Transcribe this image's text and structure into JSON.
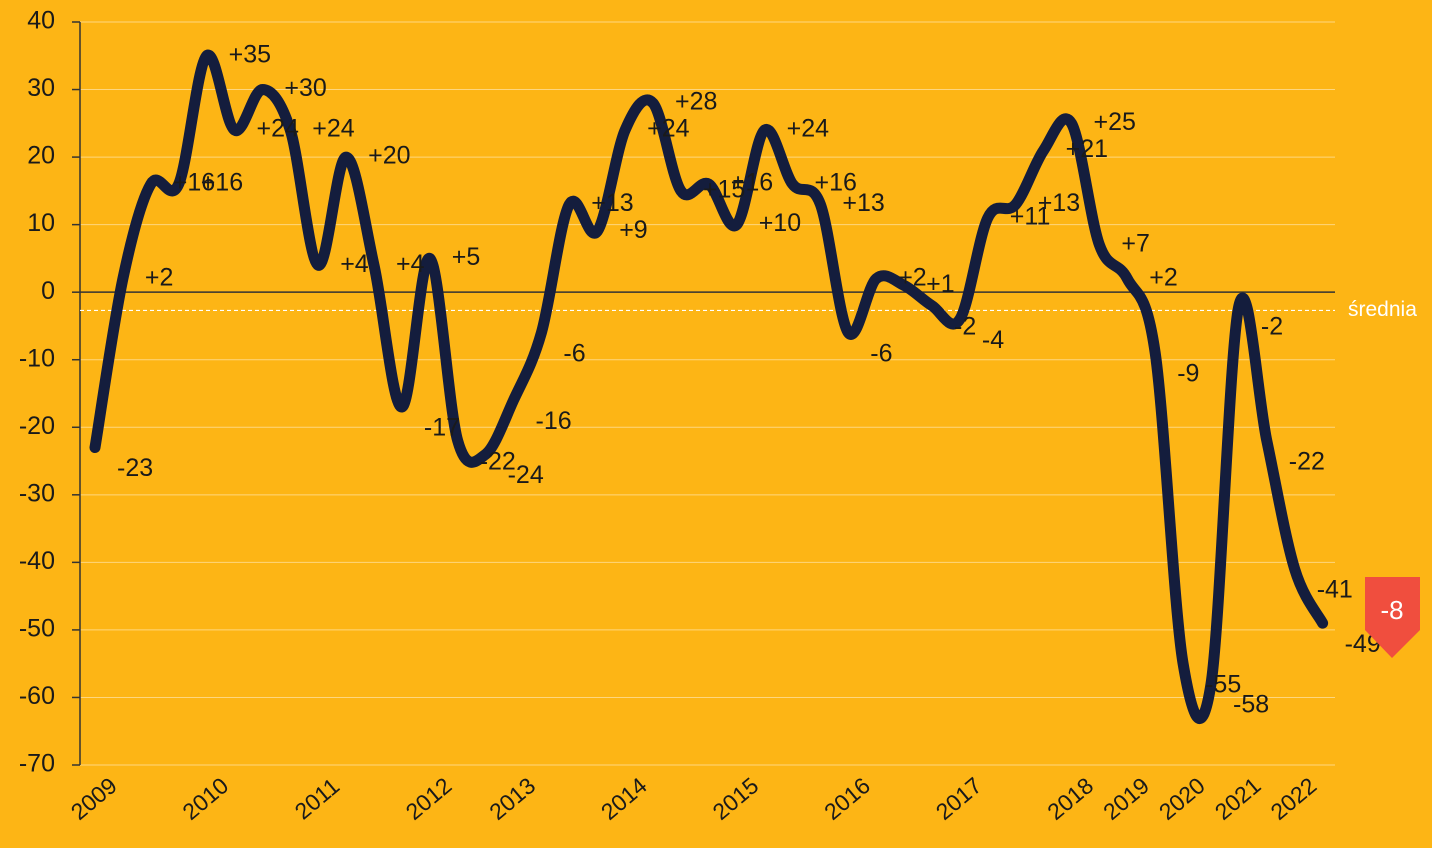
{
  "chart_data": {
    "type": "line",
    "categories": [
      "2009",
      null,
      null,
      null,
      "2010",
      null,
      null,
      null,
      "2011",
      null,
      null,
      null,
      "2012",
      null,
      null,
      "2013",
      null,
      null,
      null,
      "2014",
      null,
      null,
      null,
      "2015",
      null,
      null,
      null,
      "2016",
      null,
      null,
      null,
      "2017",
      null,
      null,
      null,
      "2018",
      null,
      "2019",
      null,
      "2020",
      null,
      "2021",
      null,
      "2022",
      null
    ],
    "series": [
      {
        "color": "#141d3d",
        "values": [
          -23,
          2,
          16,
          16,
          35,
          24,
          30,
          24,
          4,
          20,
          4,
          -17,
          5,
          -22,
          -24,
          -16,
          -6,
          13,
          9,
          24,
          28,
          15,
          16,
          10,
          24,
          16,
          13,
          -6,
          2,
          1,
          -2,
          -4,
          11,
          13,
          21,
          25,
          7,
          2,
          -9,
          -55,
          -58,
          -2,
          -22,
          -41,
          -49
        ],
        "value_labels": [
          "-23",
          "+2",
          "+16",
          "+16",
          "+35",
          "+24",
          "+30",
          "+24",
          "+4",
          "+20",
          "+4",
          "-17",
          "+5",
          "-22",
          "-24",
          "-16",
          "-6",
          "+13",
          "+9",
          "+24",
          "+28",
          "+15",
          "+16",
          "+10",
          "+24",
          "+16",
          "+13",
          "-6",
          "+2",
          "+1",
          "-2",
          "-4",
          "+11",
          "+13",
          "+21",
          "+25",
          "+7",
          "+2",
          "-9",
          "-55",
          "-58",
          "-2",
          "-22",
          "-41",
          "-49"
        ]
      }
    ],
    "ylim": [
      -70,
      40
    ],
    "yticks": [
      -70,
      -60,
      -50,
      -40,
      -30,
      -20,
      -10,
      0,
      10,
      20,
      30,
      40
    ],
    "grid": true,
    "average_line": {
      "label": "średnia",
      "value": -2.7
    },
    "badge": "-8"
  }
}
